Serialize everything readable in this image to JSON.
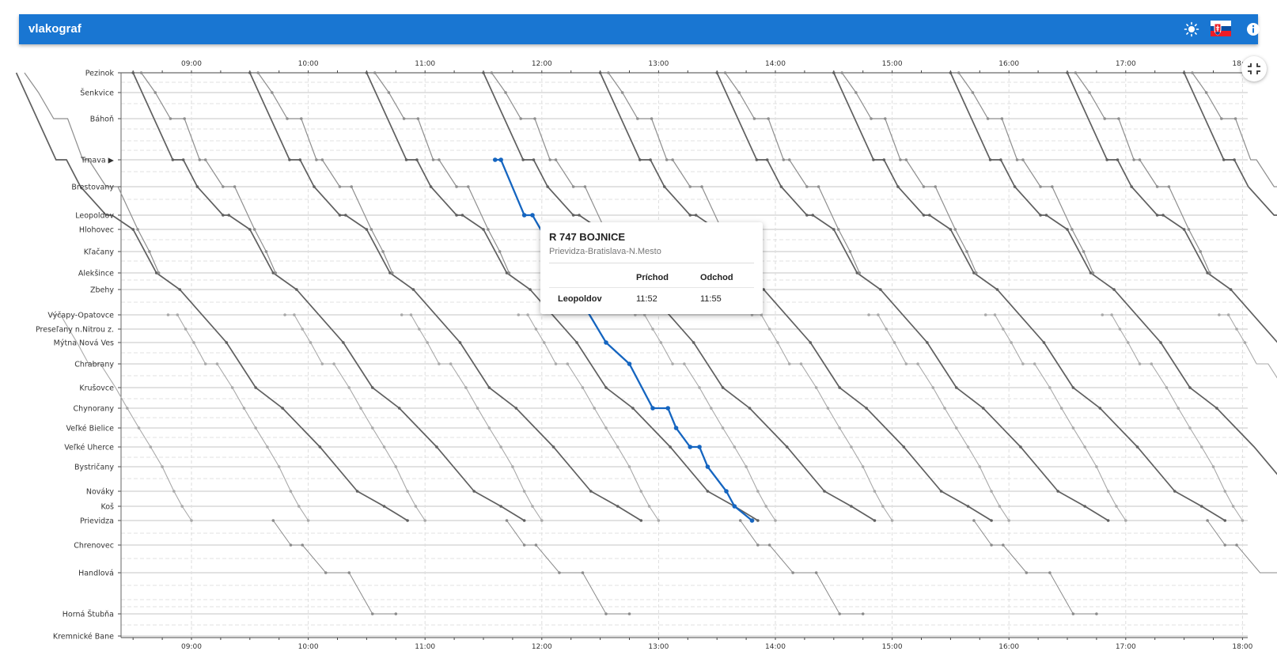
{
  "app": {
    "title": "vlakograf"
  },
  "header_icons": [
    "theme-toggle-icon",
    "language-flag-sk-icon",
    "info-icon"
  ],
  "colors": {
    "brand": "#1976d2",
    "highlight_train": "#1565c0",
    "train_dark": "#606060",
    "train_light": "#a6a6a6"
  },
  "time_axis": {
    "labels": [
      "09:00",
      "10:00",
      "11:00",
      "12:00",
      "13:00",
      "14:00",
      "15:00",
      "16:00",
      "17:00",
      "18:00"
    ]
  },
  "stations": [
    {
      "name": "Pezinok"
    },
    {
      "name": "Šenkvice"
    },
    {
      "name": "Báhoň"
    },
    {
      "name": "Trnava ▶"
    },
    {
      "name": "Brestovany"
    },
    {
      "name": "Leopoldov"
    },
    {
      "name": "Hlohovec"
    },
    {
      "name": "Kľačany"
    },
    {
      "name": "Alekšince"
    },
    {
      "name": "Zbehy"
    },
    {
      "name": "Výčapy-Opatovce"
    },
    {
      "name": "Preseľany n.Nitrou z."
    },
    {
      "name": "Mýtna Nová Ves"
    },
    {
      "name": "Chrabrany"
    },
    {
      "name": "Krušovce"
    },
    {
      "name": "Chynorany"
    },
    {
      "name": "Veľké Bielice"
    },
    {
      "name": "Veľké Uherce"
    },
    {
      "name": "Bystričany"
    },
    {
      "name": "Nováky"
    },
    {
      "name": "Koš"
    },
    {
      "name": "Prievidza"
    },
    {
      "name": "Chrenovec"
    },
    {
      "name": "Handlová"
    },
    {
      "name": "Horná Štubňa"
    },
    {
      "name": "Kremnické Bane"
    }
  ],
  "tooltip": {
    "title": "R 747 BOJNICE",
    "route": "Prievidza-Bratislava-N.Mesto",
    "col_arrival": "Príchod",
    "col_departure": "Odchod",
    "station": "Leopoldov",
    "arrival": "11:52",
    "departure": "11:55"
  }
}
